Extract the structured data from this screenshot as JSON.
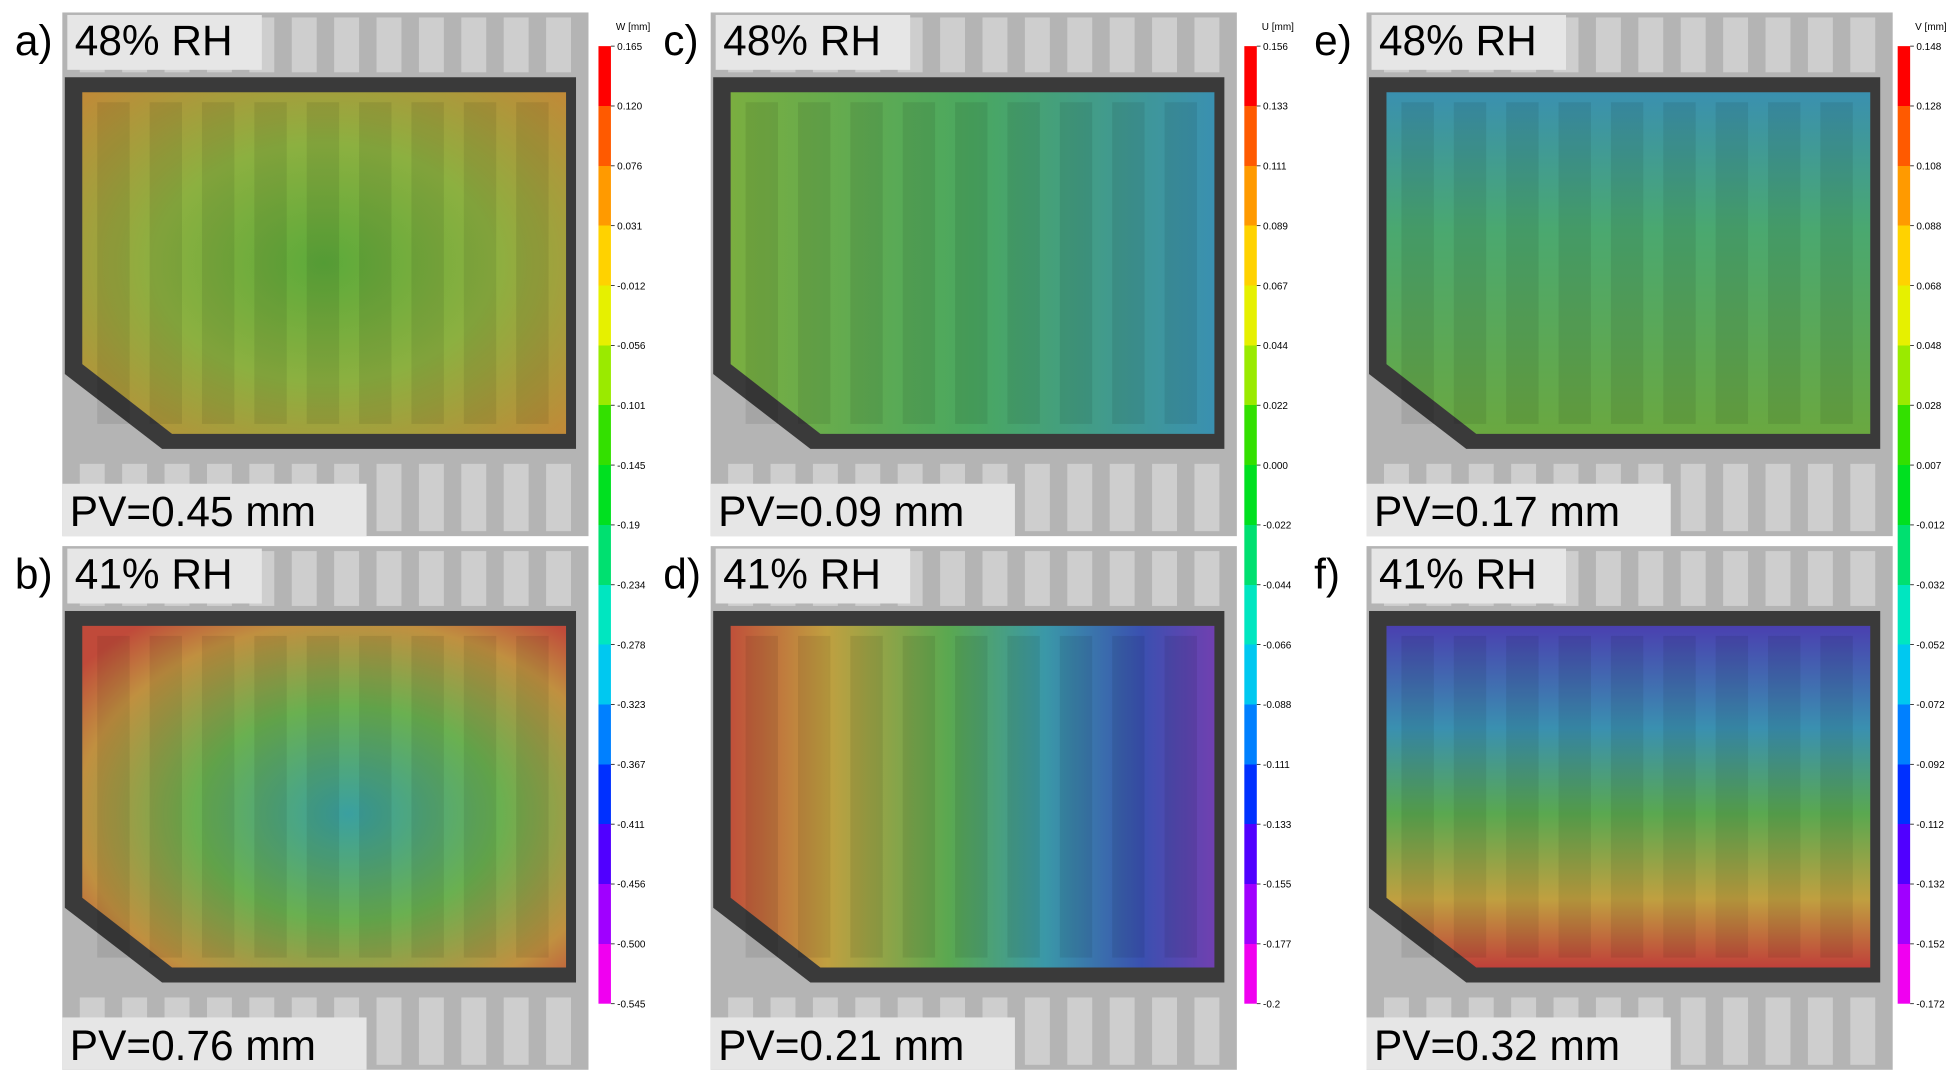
{
  "panels": [
    {
      "letter": "a)",
      "rh": "48% RH",
      "pv": "PV=0.45 mm"
    },
    {
      "letter": "b)",
      "rh": "41% RH",
      "pv": "PV=0.76 mm"
    },
    {
      "letter": "c)",
      "rh": "48% RH",
      "pv": "PV=0.09 mm"
    },
    {
      "letter": "d)",
      "rh": "41% RH",
      "pv": "PV=0.21 mm"
    },
    {
      "letter": "e)",
      "rh": "48% RH",
      "pv": "PV=0.17 mm"
    },
    {
      "letter": "f)",
      "rh": "41% RH",
      "pv": "PV=0.32 mm"
    }
  ],
  "colorbars": [
    {
      "title": "W [mm]",
      "ticks": [
        "0.165",
        "0.120",
        "0.076",
        "0.031",
        "-0.012",
        "-0.056",
        "-0.101",
        "-0.145",
        "-0.19",
        "-0.234",
        "-0.278",
        "-0.323",
        "-0.367",
        "-0.411",
        "-0.456",
        "-0.500",
        "-0.545"
      ]
    },
    {
      "title": "U [mm]",
      "ticks": [
        "0.156",
        "0.133",
        "0.111",
        "0.089",
        "0.067",
        "0.044",
        "0.022",
        "0.000",
        "-0.022",
        "-0.044",
        "-0.066",
        "-0.088",
        "-0.111",
        "-0.133",
        "-0.155",
        "-0.177",
        "-0.2"
      ]
    },
    {
      "title": "V [mm]",
      "ticks": [
        "0.148",
        "0.128",
        "0.108",
        "0.088",
        "0.068",
        "0.048",
        "0.028",
        "0.007",
        "-0.012",
        "-0.032",
        "-0.052",
        "-0.072",
        "-0.092",
        "-0.112",
        "-0.132",
        "-0.152",
        "-0.172"
      ]
    }
  ]
}
